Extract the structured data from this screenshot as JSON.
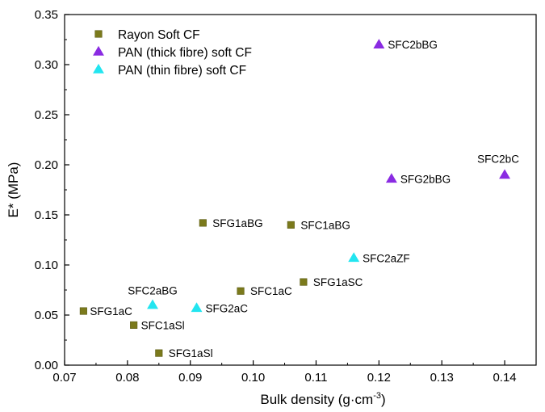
{
  "chart_data": {
    "type": "scatter",
    "xlabel": "Bulk density (g·cm",
    "xlabel_sup": "-3",
    "xlabel_close": ")",
    "ylabel": "E* (MPa)",
    "xlim": [
      0.07,
      0.145
    ],
    "ylim": [
      0.0,
      0.35
    ],
    "xticks": [
      "0.07",
      "0.08",
      "0.09",
      "0.10",
      "0.11",
      "0.12",
      "0.13",
      "0.14"
    ],
    "yticks": [
      "0.00",
      "0.05",
      "0.10",
      "0.15",
      "0.20",
      "0.25",
      "0.30",
      "0.35"
    ],
    "grid": false,
    "legend_position": "top-left",
    "series": [
      {
        "name": "Rayon Soft CF",
        "marker": "square",
        "color": "#7b7a1c",
        "points": [
          {
            "x": 0.073,
            "y": 0.054,
            "label": "SFG1aC"
          },
          {
            "x": 0.081,
            "y": 0.04,
            "label": "SFC1aSl"
          },
          {
            "x": 0.085,
            "y": 0.012,
            "label": "SFG1aSl"
          },
          {
            "x": 0.092,
            "y": 0.142,
            "label": "SFG1aBG"
          },
          {
            "x": 0.098,
            "y": 0.074,
            "label": "SFC1aC"
          },
          {
            "x": 0.106,
            "y": 0.14,
            "label": "SFC1aBG"
          },
          {
            "x": 0.108,
            "y": 0.083,
            "label": "SFG1aSC"
          }
        ]
      },
      {
        "name": "PAN (thick fibre) soft CF",
        "marker": "triangle",
        "color": "#8a2be2",
        "points": [
          {
            "x": 0.12,
            "y": 0.32,
            "label": "SFC2bBG"
          },
          {
            "x": 0.122,
            "y": 0.186,
            "label": "SFG2bBG"
          },
          {
            "x": 0.14,
            "y": 0.19,
            "label": "SFC2bC"
          }
        ]
      },
      {
        "name": "PAN (thin fibre) soft CF",
        "marker": "triangle",
        "color": "#22e5f0",
        "points": [
          {
            "x": 0.084,
            "y": 0.06,
            "label": "SFC2aBG"
          },
          {
            "x": 0.091,
            "y": 0.057,
            "label": "SFG2aC"
          },
          {
            "x": 0.116,
            "y": 0.107,
            "label": "SFC2aZF"
          }
        ]
      }
    ]
  }
}
